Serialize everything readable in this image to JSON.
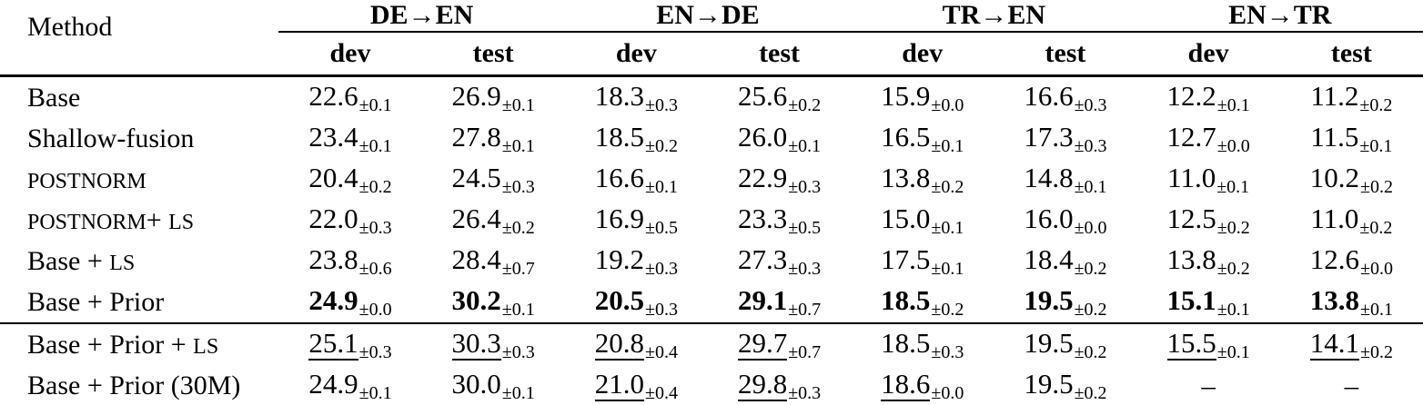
{
  "table": {
    "method_header": "Method",
    "groups": [
      {
        "label": "DE→EN"
      },
      {
        "label": "EN→DE"
      },
      {
        "label": "TR→EN"
      },
      {
        "label": "EN→TR"
      }
    ],
    "subheaders": [
      "dev",
      "test"
    ],
    "rows": [
      {
        "method_parts": [
          {
            "t": "Base"
          }
        ],
        "cells": [
          {
            "value": "22.6",
            "pm": "±0.1"
          },
          {
            "value": "26.9",
            "pm": "±0.1"
          },
          {
            "value": "18.3",
            "pm": "±0.3"
          },
          {
            "value": "25.6",
            "pm": "±0.2"
          },
          {
            "value": "15.9",
            "pm": "±0.0"
          },
          {
            "value": "16.6",
            "pm": "±0.3"
          },
          {
            "value": "12.2",
            "pm": "±0.1"
          },
          {
            "value": "11.2",
            "pm": "±0.2"
          }
        ]
      },
      {
        "method_parts": [
          {
            "t": "Shallow-fusion"
          }
        ],
        "cells": [
          {
            "value": "23.4",
            "pm": "±0.1"
          },
          {
            "value": "27.8",
            "pm": "±0.1"
          },
          {
            "value": "18.5",
            "pm": "±0.2"
          },
          {
            "value": "26.0",
            "pm": "±0.1"
          },
          {
            "value": "16.5",
            "pm": "±0.1"
          },
          {
            "value": "17.3",
            "pm": "±0.3"
          },
          {
            "value": "12.7",
            "pm": "±0.0"
          },
          {
            "value": "11.5",
            "pm": "±0.1"
          }
        ]
      },
      {
        "method_parts": [
          {
            "t": "POSTNORM",
            "sc": true
          }
        ],
        "cells": [
          {
            "value": "20.4",
            "pm": "±0.2"
          },
          {
            "value": "24.5",
            "pm": "±0.3"
          },
          {
            "value": "16.6",
            "pm": "±0.1"
          },
          {
            "value": "22.9",
            "pm": "±0.3"
          },
          {
            "value": "13.8",
            "pm": "±0.2"
          },
          {
            "value": "14.8",
            "pm": "±0.1"
          },
          {
            "value": "11.0",
            "pm": "±0.1"
          },
          {
            "value": "10.2",
            "pm": "±0.2"
          }
        ]
      },
      {
        "method_parts": [
          {
            "t": "POSTNORM",
            "sc": true
          },
          {
            "t": "+ "
          },
          {
            "t": "LS",
            "sc": true
          }
        ],
        "cells": [
          {
            "value": "22.0",
            "pm": "±0.3"
          },
          {
            "value": "26.4",
            "pm": "±0.2"
          },
          {
            "value": "16.9",
            "pm": "±0.5"
          },
          {
            "value": "23.3",
            "pm": "±0.5"
          },
          {
            "value": "15.0",
            "pm": "±0.1"
          },
          {
            "value": "16.0",
            "pm": "±0.0"
          },
          {
            "value": "12.5",
            "pm": "±0.2"
          },
          {
            "value": "11.0",
            "pm": "±0.2"
          }
        ]
      },
      {
        "method_parts": [
          {
            "t": "Base + "
          },
          {
            "t": "LS",
            "sc": true
          }
        ],
        "cells": [
          {
            "value": "23.8",
            "pm": "±0.6"
          },
          {
            "value": "28.4",
            "pm": "±0.7"
          },
          {
            "value": "19.2",
            "pm": "±0.3"
          },
          {
            "value": "27.3",
            "pm": "±0.3"
          },
          {
            "value": "17.5",
            "pm": "±0.1"
          },
          {
            "value": "18.4",
            "pm": "±0.2"
          },
          {
            "value": "13.8",
            "pm": "±0.2"
          },
          {
            "value": "12.6",
            "pm": "±0.0"
          }
        ]
      },
      {
        "method_parts": [
          {
            "t": "Base + Prior"
          }
        ],
        "cells": [
          {
            "value": "24.9",
            "pm": "±0.0",
            "bold": true
          },
          {
            "value": "30.2",
            "pm": "±0.1",
            "bold": true
          },
          {
            "value": "20.5",
            "pm": "±0.3",
            "bold": true
          },
          {
            "value": "29.1",
            "pm": "±0.7",
            "bold": true
          },
          {
            "value": "18.5",
            "pm": "±0.2",
            "bold": true
          },
          {
            "value": "19.5",
            "pm": "±0.2",
            "bold": true
          },
          {
            "value": "15.1",
            "pm": "±0.1",
            "bold": true
          },
          {
            "value": "13.8",
            "pm": "±0.1",
            "bold": true
          }
        ]
      },
      {
        "rule_above": true,
        "method_parts": [
          {
            "t": "Base + Prior + "
          },
          {
            "t": "LS",
            "sc": true
          }
        ],
        "cells": [
          {
            "value": "25.1",
            "pm": "±0.3",
            "underline": true
          },
          {
            "value": "30.3",
            "pm": "±0.3",
            "underline": true
          },
          {
            "value": "20.8",
            "pm": "±0.4",
            "underline": true
          },
          {
            "value": "29.7",
            "pm": "±0.7",
            "underline": true
          },
          {
            "value": "18.5",
            "pm": "±0.3"
          },
          {
            "value": "19.5",
            "pm": "±0.2"
          },
          {
            "value": "15.5",
            "pm": "±0.1",
            "underline": true
          },
          {
            "value": "14.1",
            "pm": "±0.2",
            "underline": true
          }
        ]
      },
      {
        "method_parts": [
          {
            "t": "Base + Prior (30M)"
          }
        ],
        "cells": [
          {
            "value": "24.9",
            "pm": "±0.1"
          },
          {
            "value": "30.0",
            "pm": "±0.1"
          },
          {
            "value": "21.0",
            "pm": "±0.4",
            "underline": true
          },
          {
            "value": "29.8",
            "pm": "±0.3",
            "underline": true
          },
          {
            "value": "18.6",
            "pm": "±0.0",
            "underline": true
          },
          {
            "value": "19.5",
            "pm": "±0.2"
          },
          {
            "value": "–",
            "pm": ""
          },
          {
            "value": "–",
            "pm": ""
          }
        ]
      }
    ]
  }
}
